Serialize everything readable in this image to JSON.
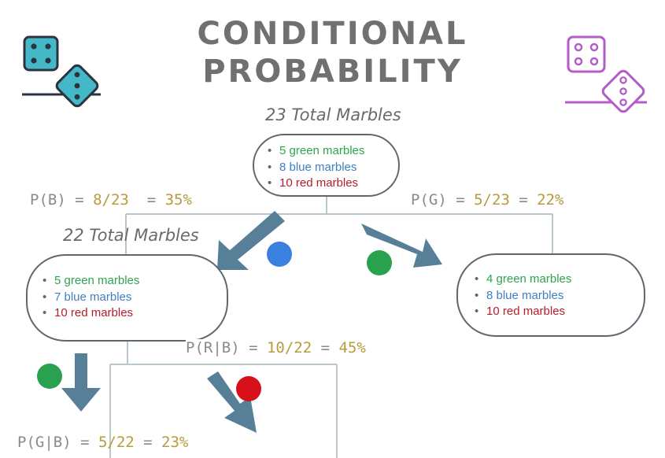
{
  "title": {
    "line1": "CONDITIONAL",
    "line2": "PROBABILITY"
  },
  "root": {
    "total_label": "23 Total Marbles",
    "items": [
      "5 green marbles",
      "8 blue marbles",
      "10 red marbles"
    ]
  },
  "branch_blue": {
    "total_label": "22 Total Marbles",
    "items": [
      "5 green marbles",
      "7 blue marbles",
      "10 red marbles"
    ],
    "formula": {
      "prefix": "P(B) = ",
      "fraction": "8/23",
      "mid": "  = ",
      "result": "35%"
    }
  },
  "branch_green": {
    "items": [
      "4 green marbles",
      "8 blue marbles",
      "10 red marbles"
    ],
    "formula": {
      "prefix": "P(G) = ",
      "fraction": "5/23",
      "mid": " = ",
      "result": "22%"
    }
  },
  "cond_red": {
    "prefix": "P(R|B) = ",
    "fraction": "10/22",
    "mid": " = ",
    "result": "45%"
  },
  "cond_green": {
    "prefix": "P(G|B) = ",
    "fraction": "5/22",
    "mid": " = ",
    "result": "23%"
  },
  "colors": {
    "green": "#2fa34f",
    "blue": "#3f7fc0",
    "red": "#b51d2a",
    "dot_blue": "#3b7fe0",
    "dot_green": "#2aa14e",
    "dot_red": "#d7101a",
    "arrow": "#577f98",
    "teal_dice": "#45b8c8",
    "purple_dice": "#b45cc8"
  },
  "icons": {
    "left_dice": "dice-icon",
    "right_dice": "dice-icon"
  }
}
